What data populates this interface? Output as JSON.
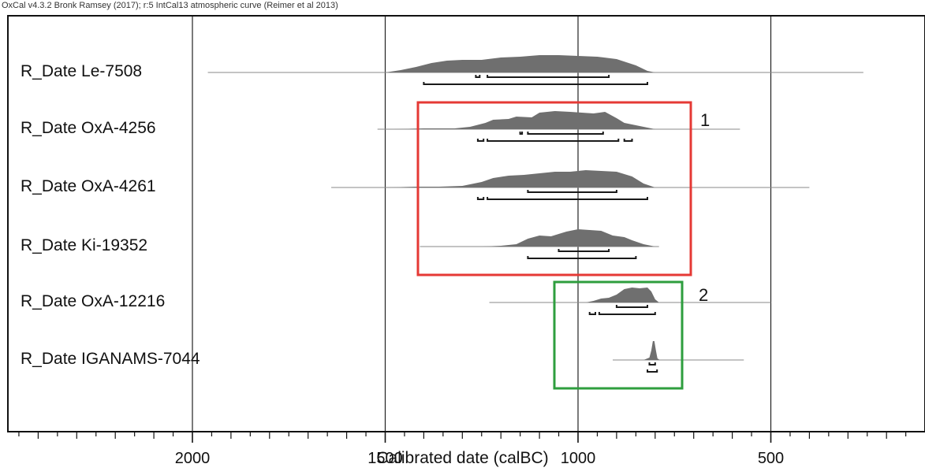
{
  "header": {
    "caption": "OxCal v4.3.2 Bronk Ramsey (2017); r:5 IntCal13 atmospheric curve (Reimer et al 2013)"
  },
  "chart_data": {
    "type": "area",
    "xlabel": "Calibrated date (calBC)",
    "x_axis": {
      "reversed": true,
      "xlim": [
        2500,
        0
      ],
      "ticks": [
        2000,
        1500,
        1000,
        500
      ],
      "tick_labels": [
        "2000",
        "1500",
        "1000",
        "500"
      ]
    },
    "grid": "vertical lines at major ticks",
    "colors": {
      "distribution": "#6f6f6f",
      "baseline": "#8a8a8a",
      "ranges": "#1a1a1a",
      "group_1_box": "#e53935",
      "group_2_box": "#2e9e3e"
    },
    "series": [
      {
        "name": "R_Date Le-7508",
        "line_range": [
          1960,
          260
        ],
        "density": [
          [
            1500,
            0
          ],
          [
            1460,
            3
          ],
          [
            1420,
            7
          ],
          [
            1380,
            12
          ],
          [
            1340,
            15
          ],
          [
            1300,
            16
          ],
          [
            1250,
            16
          ],
          [
            1200,
            19
          ],
          [
            1150,
            20
          ],
          [
            1100,
            22
          ],
          [
            1050,
            22
          ],
          [
            1000,
            21
          ],
          [
            950,
            20
          ],
          [
            900,
            17
          ],
          [
            850,
            9
          ],
          [
            820,
            2
          ],
          [
            800,
            0
          ]
        ],
        "ranges": [
          [
            [
              1265,
              1255
            ],
            [
              1235,
              920
            ]
          ],
          [
            [
              1400,
              820
            ]
          ]
        ]
      },
      {
        "name": "R_Date OxA-4256",
        "line_range": [
          1520,
          580
        ],
        "density": [
          [
            1480,
            0
          ],
          [
            1400,
            1
          ],
          [
            1320,
            1
          ],
          [
            1280,
            3
          ],
          [
            1240,
            8
          ],
          [
            1220,
            12
          ],
          [
            1180,
            13
          ],
          [
            1160,
            16
          ],
          [
            1120,
            15
          ],
          [
            1100,
            21
          ],
          [
            1060,
            23
          ],
          [
            1020,
            22
          ],
          [
            990,
            21
          ],
          [
            960,
            20
          ],
          [
            930,
            22
          ],
          [
            900,
            14
          ],
          [
            880,
            8
          ],
          [
            840,
            4
          ],
          [
            800,
            0
          ]
        ],
        "ranges": [
          [
            [
              1150,
              1145
            ],
            [
              1130,
              935
            ]
          ],
          [
            [
              1260,
              1245
            ],
            [
              1235,
              895
            ],
            [
              880,
              860
            ]
          ]
        ]
      },
      {
        "name": "R_Date OxA-4261",
        "line_range": [
          1640,
          400
        ],
        "density": [
          [
            1500,
            0
          ],
          [
            1420,
            1
          ],
          [
            1360,
            1
          ],
          [
            1300,
            2
          ],
          [
            1250,
            7
          ],
          [
            1220,
            12
          ],
          [
            1180,
            15
          ],
          [
            1140,
            16
          ],
          [
            1100,
            18
          ],
          [
            1060,
            20
          ],
          [
            1020,
            20
          ],
          [
            980,
            22
          ],
          [
            940,
            21
          ],
          [
            900,
            20
          ],
          [
            860,
            14
          ],
          [
            830,
            5
          ],
          [
            800,
            0
          ]
        ],
        "ranges": [
          [
            [
              1130,
              900
            ]
          ],
          [
            [
              1260,
              1245
            ],
            [
              1235,
              820
            ]
          ]
        ]
      },
      {
        "name": "R_Date Ki-19352",
        "line_range": [
          1410,
          790
        ],
        "density": [
          [
            1250,
            0
          ],
          [
            1200,
            1
          ],
          [
            1160,
            3
          ],
          [
            1130,
            10
          ],
          [
            1100,
            14
          ],
          [
            1070,
            13
          ],
          [
            1050,
            16
          ],
          [
            1030,
            19
          ],
          [
            1000,
            22
          ],
          [
            970,
            21
          ],
          [
            940,
            20
          ],
          [
            910,
            14
          ],
          [
            880,
            12
          ],
          [
            860,
            8
          ],
          [
            830,
            3
          ],
          [
            800,
            0
          ]
        ],
        "ranges": [
          [
            [
              1050,
              920
            ]
          ],
          [
            [
              1130,
              850
            ]
          ]
        ]
      },
      {
        "name": "R_Date OxA-12216",
        "line_range": [
          1230,
          500
        ],
        "density": [
          [
            980,
            0
          ],
          [
            960,
            2
          ],
          [
            940,
            5
          ],
          [
            920,
            6
          ],
          [
            900,
            10
          ],
          [
            880,
            17
          ],
          [
            860,
            19
          ],
          [
            840,
            18
          ],
          [
            820,
            19
          ],
          [
            810,
            14
          ],
          [
            800,
            4
          ],
          [
            790,
            0
          ]
        ],
        "ranges": [
          [
            [
              900,
              820
            ]
          ],
          [
            [
              970,
              955
            ],
            [
              945,
              800
            ]
          ]
        ]
      },
      {
        "name": "R_Date IGANAMS-7044",
        "line_range": [
          910,
          570
        ],
        "density": [
          [
            830,
            0
          ],
          [
            815,
            3
          ],
          [
            810,
            12
          ],
          [
            806,
            24
          ],
          [
            802,
            24
          ],
          [
            798,
            12
          ],
          [
            794,
            2
          ],
          [
            788,
            0
          ]
        ],
        "ranges": [
          [
            [
              815,
              800
            ]
          ],
          [
            [
              820,
              795
            ]
          ]
        ]
      }
    ],
    "annotations": [
      {
        "label": "1",
        "members": [
          "R_Date OxA-4256",
          "R_Date OxA-4261",
          "R_Date Ki-19352"
        ],
        "color": "#e53935"
      },
      {
        "label": "2",
        "members": [
          "R_Date OxA-12216",
          "R_Date IGANAMS-7044"
        ],
        "color": "#2e9e3e"
      }
    ]
  }
}
